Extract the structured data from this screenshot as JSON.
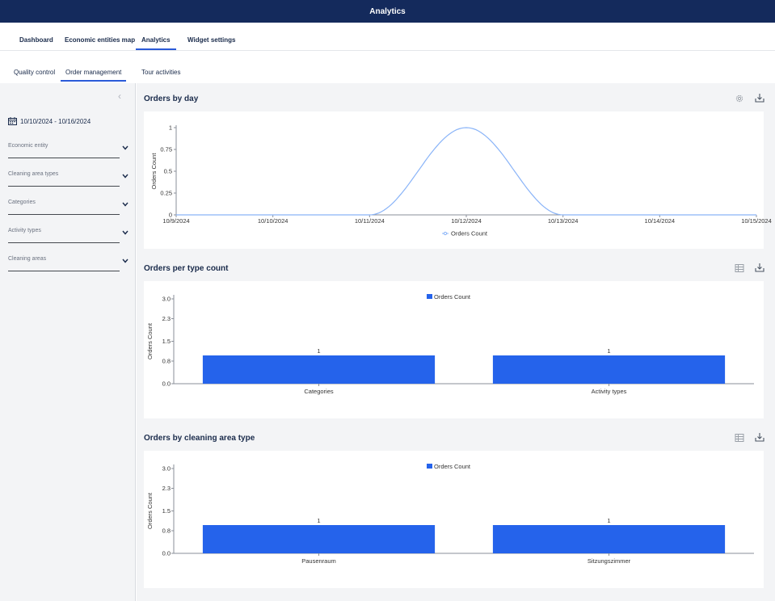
{
  "header": {
    "title": "Analytics"
  },
  "main_tabs": [
    {
      "label": "Dashboard"
    },
    {
      "label": "Economic entities map"
    },
    {
      "label": "Analytics"
    },
    {
      "label": "Widget settings"
    }
  ],
  "sub_tabs": [
    {
      "label": "Quality control"
    },
    {
      "label": "Order management"
    },
    {
      "label": "Tour activities"
    }
  ],
  "sidebar": {
    "collapse_icon": "chevron-left-icon",
    "date_range": "10/10/2024 - 10/16/2024",
    "filters": [
      {
        "label": "Economic entity"
      },
      {
        "label": "Cleaning area types"
      },
      {
        "label": "Categories"
      },
      {
        "label": "Activity types"
      },
      {
        "label": "Cleaning areas"
      }
    ]
  },
  "panels": [
    {
      "title": "Orders by day",
      "icons": [
        "gear-icon",
        "download-icon"
      ]
    },
    {
      "title": "Orders per type count",
      "icons": [
        "table-icon",
        "download-icon"
      ]
    },
    {
      "title": "Orders by cleaning area type",
      "icons": [
        "table-icon",
        "download-icon"
      ]
    }
  ],
  "colors": {
    "accent": "#2a5ad8",
    "header_bg": "#142a5c",
    "bar": "#2563eb",
    "line": "#8ab4f8"
  },
  "chart_data": [
    {
      "type": "line",
      "x": [
        "10/9/2024",
        "10/10/2024",
        "10/11/2024",
        "10/12/2024",
        "10/13/2024",
        "10/14/2024",
        "10/15/2024"
      ],
      "series": [
        {
          "name": "Orders Count",
          "values": [
            0,
            0,
            0,
            1,
            0,
            0,
            0
          ]
        }
      ],
      "ylabel": "Orders Count",
      "yticks": [
        "0",
        "0.25",
        "0.5",
        "0.75",
        "1"
      ],
      "ylim": [
        0,
        1
      ],
      "legend": "bottom-center"
    },
    {
      "type": "bar",
      "categories": [
        "Categories",
        "Activity types"
      ],
      "series": [
        {
          "name": "Orders Count",
          "values": [
            1,
            1
          ]
        }
      ],
      "data_labels": [
        "1",
        "1"
      ],
      "ylabel": "Orders Count",
      "yticks": [
        "0.0",
        "0.8",
        "1.5",
        "2.3",
        "3.0"
      ],
      "ylim": [
        0,
        3
      ],
      "legend": "top-center"
    },
    {
      "type": "bar",
      "categories": [
        "Pausenraum",
        "Sitzungszimmer"
      ],
      "series": [
        {
          "name": "Orders Count",
          "values": [
            1,
            1
          ]
        }
      ],
      "data_labels": [
        "1",
        "1"
      ],
      "ylabel": "Orders Count",
      "yticks": [
        "0.0",
        "0.8",
        "1.5",
        "2.3",
        "3.0"
      ],
      "ylim": [
        0,
        3
      ],
      "legend": "top-center"
    }
  ]
}
